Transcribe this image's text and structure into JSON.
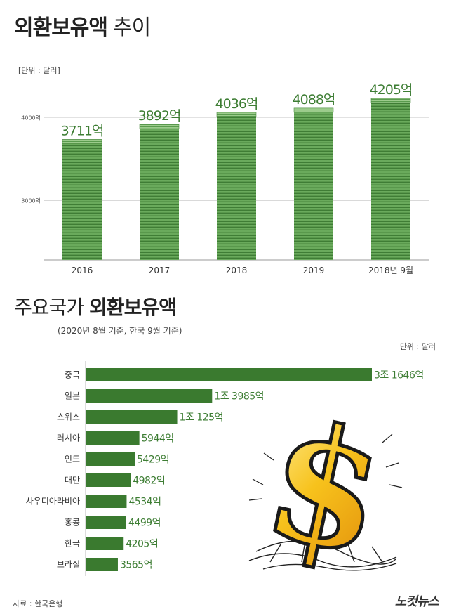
{
  "header": {
    "title_bold": "외환보유액",
    "title_rest": "추이",
    "unit": "[단위 : 달러]"
  },
  "chart_data": [
    {
      "type": "bar",
      "title": "외환보유액 추이",
      "unit": "[단위 : 달러]",
      "categories": [
        "2016",
        "2017",
        "2018",
        "2019",
        "2018년 9월"
      ],
      "values": [
        3711,
        3892,
        4036,
        4088,
        4205
      ],
      "data_labels": [
        "3711억",
        "3892억",
        "4036억",
        "4088억",
        "4205억"
      ],
      "yticks": [
        3000,
        4000
      ],
      "ytick_labels": [
        "3000억",
        "4000억"
      ],
      "ylim": [
        2285,
        4400
      ],
      "grid": true,
      "color": "#5a9b4e"
    },
    {
      "type": "bar",
      "orientation": "horizontal",
      "title": "주요국가 외환보유액",
      "subtitle": "(2020년 8월 기준, 한국 9월 기준)",
      "unit": "단위 : 달러",
      "categories": [
        "중국",
        "일본",
        "스위스",
        "러시아",
        "인도",
        "대만",
        "사우디아라비아",
        "홍콩",
        "한국",
        "브라질"
      ],
      "values": [
        31646,
        13985,
        10125,
        5944,
        5429,
        4982,
        4534,
        4499,
        4205,
        3565
      ],
      "data_labels": [
        "3조 1646억",
        "1조 3985억",
        "1조 125억",
        "5944억",
        "5429억",
        "4982억",
        "4534억",
        "4499억",
        "4205억",
        "3565억"
      ],
      "color": "#3a7a2f"
    }
  ],
  "section2": {
    "title_normal": "주요국가",
    "title_bold": "외환보유액",
    "subtitle": "(2020년 8월 기준, 한국 9월 기준)",
    "unit": "단위 : 달러"
  },
  "footer": {
    "source": "자료 : 한국은행",
    "logo": "노컷뉴스"
  },
  "colors": {
    "bar_green": "#5a9b4e",
    "bar_green_dark": "#3a7a2f",
    "label_green": "#3d7d33",
    "grid": "#d9d9d9"
  }
}
